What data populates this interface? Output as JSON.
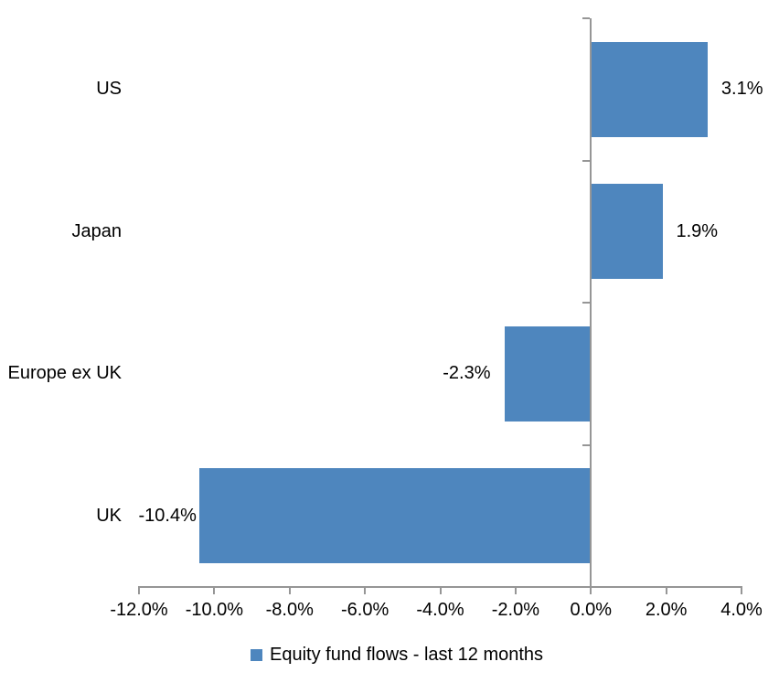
{
  "chart_data": {
    "type": "bar",
    "orientation": "horizontal",
    "title": "",
    "xlabel": "",
    "ylabel": "",
    "categories": [
      "US",
      "Japan",
      "Europe ex UK",
      "UK"
    ],
    "values": [
      3.1,
      1.9,
      -2.3,
      -10.4
    ],
    "data_labels": [
      "3.1%",
      "1.9%",
      "-2.3%",
      "-10.4%"
    ],
    "series_name": "Equity fund flows - last 12 months",
    "xlim": [
      -12,
      4
    ],
    "x_ticks": [
      -12,
      -10,
      -8,
      -6,
      -4,
      -2,
      0,
      2,
      4
    ],
    "x_tick_labels": [
      "-12.0%",
      "-10.0%",
      "-8.0%",
      "-6.0%",
      "-4.0%",
      "-2.0%",
      "0.0%",
      "2.0%",
      "4.0%"
    ],
    "grid": false,
    "legend_position": "bottom",
    "colors": {
      "bar": "#4e86be",
      "axis": "#969696",
      "text": "#000000",
      "background": "#ffffff"
    }
  }
}
